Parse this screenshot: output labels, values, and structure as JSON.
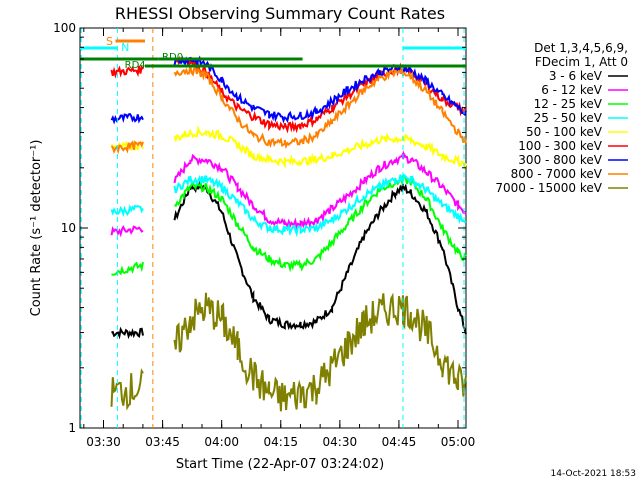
{
  "chart_data": {
    "type": "line",
    "title": "RHESSI Observing Summary Count Rates",
    "xlabel": "Start Time (22-Apr-07 03:24:02)",
    "ylabel": "Count Rate (s⁻¹ detector⁻¹)",
    "x_ticks": [
      "03:30",
      "03:45",
      "04:00",
      "04:15",
      "04:30",
      "04:45",
      "05:00"
    ],
    "y_ticks": [
      "1",
      "10",
      "100"
    ],
    "x_range": [
      "03:24:02",
      "05:02:00"
    ],
    "y_range": [
      1,
      100
    ],
    "y_scale": "log",
    "legend": {
      "header": [
        "Det 1,3,4,5,6,9,",
        "FDecim 1, Att 0"
      ],
      "placement": "right"
    },
    "footer_date": "14-Oct-2021 18:53",
    "markers": [
      {
        "label": "S",
        "color": "#ff8000"
      },
      {
        "label": "N",
        "color": "#00ffff"
      },
      {
        "label": "RD4",
        "color": "#008000"
      },
      {
        "label": "RD0",
        "color": "#008000"
      }
    ],
    "x_minutes": [
      0,
      8,
      16,
      18,
      20,
      24,
      28,
      32,
      36,
      40,
      44,
      48,
      52,
      56,
      60,
      64,
      68,
      72,
      76,
      80,
      82,
      84,
      88,
      92,
      96,
      98
    ],
    "series": [
      {
        "name": "3 - 6 keV",
        "color": "#000000",
        "values": [
          null,
          3.0,
          3.0,
          null,
          null,
          11.0,
          16.0,
          16.0,
          12.0,
          7.0,
          4.5,
          3.5,
          3.3,
          3.3,
          3.4,
          4.0,
          6.0,
          9.0,
          12.0,
          15.0,
          16.0,
          15.0,
          12.0,
          8.0,
          4.0,
          3.0
        ]
      },
      {
        "name": "6 - 12 keV",
        "color": "#ff00ff",
        "values": [
          null,
          9.5,
          10.0,
          null,
          null,
          17.0,
          22.0,
          22.0,
          20.0,
          16.0,
          13.0,
          11.0,
          10.5,
          10.5,
          11.0,
          12.5,
          14.5,
          17.0,
          20.0,
          22.0,
          22.5,
          22.0,
          19.0,
          16.0,
          13.0,
          12.0
        ]
      },
      {
        "name": "12 - 25 keV",
        "color": "#00ff00",
        "values": [
          null,
          6.0,
          6.5,
          null,
          null,
          13.0,
          16.0,
          16.0,
          14.0,
          10.5,
          8.0,
          7.0,
          6.5,
          6.5,
          7.0,
          8.5,
          10.5,
          13.0,
          15.5,
          17.0,
          17.5,
          17.0,
          14.0,
          10.0,
          7.5,
          7.0
        ]
      },
      {
        "name": "25 - 50 keV",
        "color": "#00ffff",
        "values": [
          null,
          12.0,
          12.5,
          null,
          null,
          15.5,
          17.5,
          17.5,
          16.0,
          13.5,
          11.0,
          10.0,
          9.8,
          9.8,
          10.0,
          11.0,
          12.5,
          14.5,
          16.0,
          17.5,
          18.0,
          17.5,
          15.5,
          13.0,
          11.5,
          11.0
        ]
      },
      {
        "name": "50 - 100 keV",
        "color": "#ffff00",
        "values": [
          null,
          25.0,
          26.0,
          null,
          null,
          28.0,
          30.0,
          30.0,
          29.0,
          26.0,
          23.0,
          22.0,
          21.5,
          21.5,
          22.0,
          23.0,
          24.5,
          26.0,
          27.5,
          28.0,
          28.0,
          27.5,
          25.5,
          23.0,
          21.5,
          21.0
        ]
      },
      {
        "name": "100 - 300 keV",
        "color": "#ff0000",
        "values": [
          null,
          60.0,
          62.0,
          null,
          null,
          70.0,
          68.0,
          60.0,
          48.0,
          40.0,
          36.0,
          33.0,
          32.0,
          32.5,
          35.0,
          40.0,
          46.0,
          52.0,
          58.0,
          62.0,
          62.0,
          60.0,
          52.0,
          44.0,
          40.0,
          38.0
        ]
      },
      {
        "name": "300 - 800 keV",
        "color": "#0000ff",
        "values": [
          null,
          35.0,
          36.0,
          null,
          null,
          68.0,
          70.0,
          66.0,
          55.0,
          45.0,
          40.0,
          37.0,
          36.0,
          36.5,
          38.0,
          43.0,
          49.0,
          55.0,
          60.0,
          63.0,
          63.0,
          61.0,
          54.0,
          46.0,
          40.0,
          37.0
        ]
      },
      {
        "name": "800 - 7000 keV",
        "color": "#ff8000",
        "values": [
          null,
          25.0,
          26.0,
          null,
          null,
          60.0,
          62.0,
          58.0,
          45.0,
          35.0,
          29.0,
          27.0,
          26.5,
          27.0,
          29.0,
          34.0,
          41.0,
          49.0,
          56.0,
          60.0,
          60.0,
          57.0,
          48.0,
          38.0,
          30.0,
          27.0
        ]
      },
      {
        "name": "7000 - 15000 keV",
        "color": "#808000",
        "values": [
          null,
          1.5,
          1.6,
          null,
          null,
          2.5,
          3.5,
          4.0,
          3.5,
          2.5,
          1.8,
          1.5,
          1.4,
          1.5,
          1.6,
          2.0,
          2.6,
          3.3,
          3.8,
          4.0,
          4.0,
          3.8,
          3.0,
          2.2,
          1.7,
          1.6
        ]
      }
    ]
  }
}
